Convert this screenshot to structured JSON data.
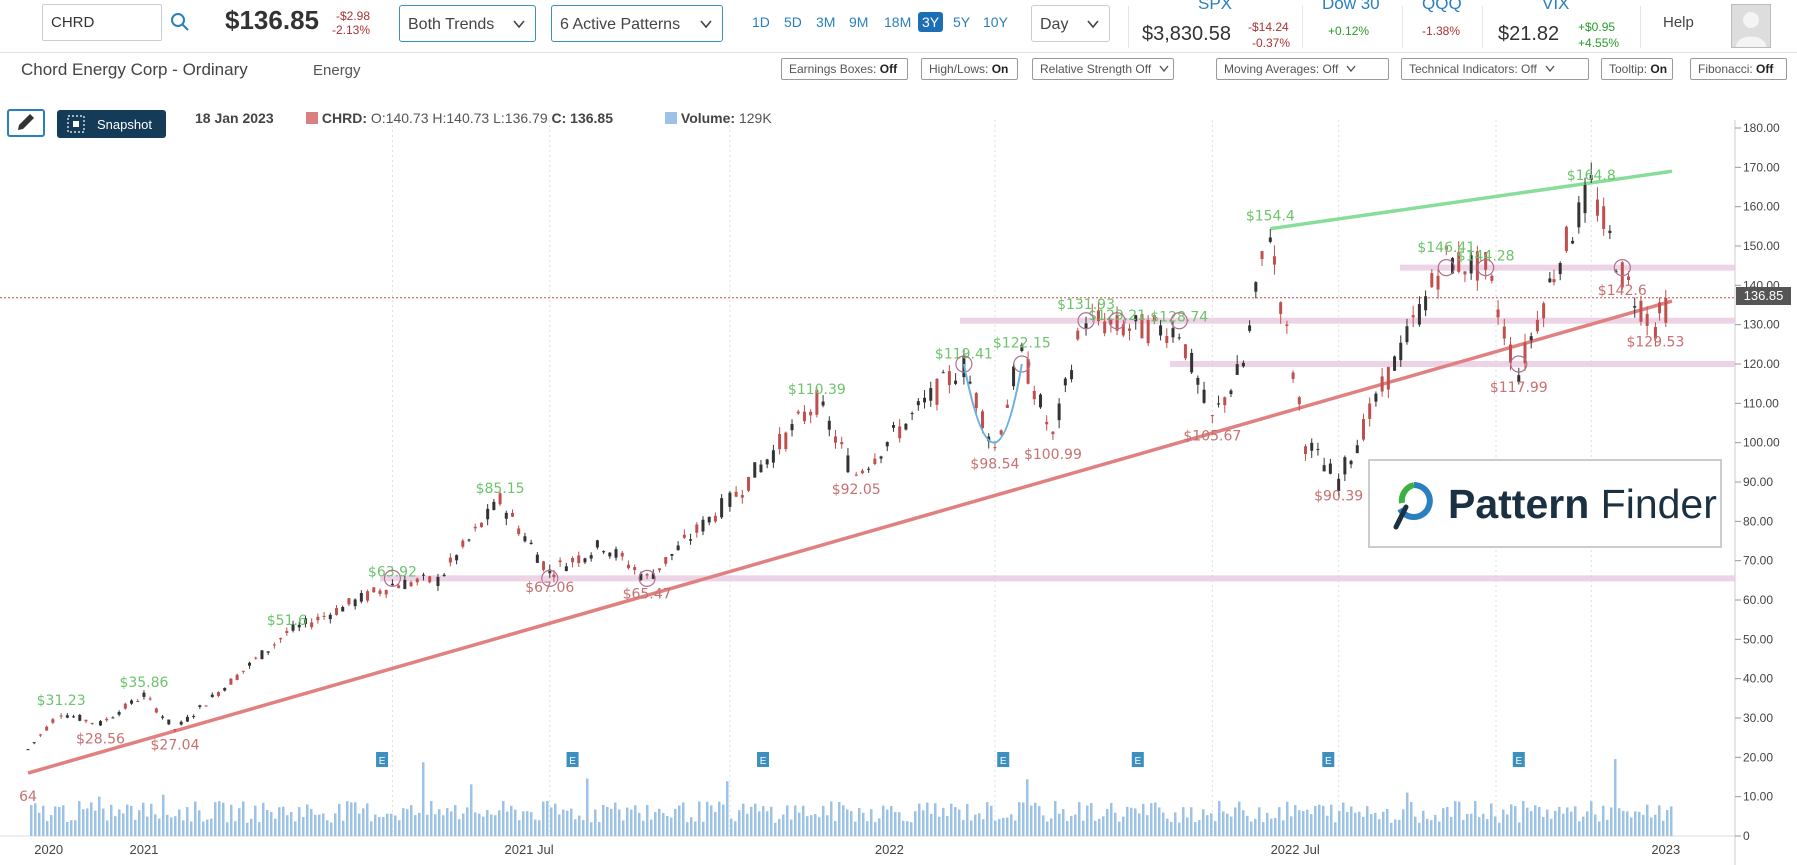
{
  "search": {
    "value": "CHRD"
  },
  "quote": {
    "price": "$136.85",
    "change": "-$2.98",
    "change_pct": "-2.13%"
  },
  "trend_select": {
    "value": "Both Trends"
  },
  "patterns_select": {
    "value": "6 Active Patterns"
  },
  "ranges": [
    "1D",
    "5D",
    "3M",
    "9M",
    "18M",
    "3Y",
    "5Y",
    "10Y"
  ],
  "active_range": "3Y",
  "interval_select": {
    "value": "Day"
  },
  "indices": [
    {
      "name": "SPX",
      "value": "$3,830.58",
      "change": "-$14.24",
      "change_pct": "-0.37%"
    },
    {
      "name": "Dow 30",
      "value": "",
      "change": "",
      "change_pct": "+0.12%"
    },
    {
      "name": "QQQ",
      "value": "",
      "change": "",
      "change_pct": "-1.38%"
    },
    {
      "name": "VIX",
      "value": "$21.82",
      "change": "+$0.95",
      "change_pct": "+4.55%"
    }
  ],
  "help_label": "Help",
  "company": {
    "name": "Chord Energy Corp - Ordinary",
    "sector": "Energy"
  },
  "toolbar": [
    {
      "label": "Earnings Boxes:",
      "value": "Off",
      "dropdown": false
    },
    {
      "label": "High/Lows:",
      "value": "On",
      "dropdown": false
    },
    {
      "label": "Relative Strength Off",
      "value": "",
      "dropdown": true
    },
    {
      "label": "Moving Averages: Off",
      "value": "",
      "dropdown": true
    },
    {
      "label": "Technical Indicators: Off",
      "value": "",
      "dropdown": true
    },
    {
      "label": "Tooltip:",
      "value": "On",
      "dropdown": false
    },
    {
      "label": "Fibonacci:",
      "value": "Off",
      "dropdown": false
    }
  ],
  "snapshot_label": "Snapshot",
  "ohlc": {
    "date": "18 Jan 2023",
    "symbol": "CHRD:",
    "o": "O:140.73",
    "h": "H:140.73",
    "l": "L:136.79",
    "c_label": "C:",
    "c": "136.85",
    "vol_label": "Volume:",
    "vol": "129K"
  },
  "logo": {
    "word1": "Pattern",
    "word2": "Finder"
  },
  "colors": {
    "up": "#333333",
    "down": "#c0504d",
    "support": "#e08080",
    "resistance": "#88dd99",
    "zone": "#e8c8e0",
    "accent": "#2a7fbf"
  },
  "chart_data": {
    "type": "candlestick",
    "y_ticks": [
      "180.00",
      "170.00",
      "160.00",
      "150.00",
      "140.00",
      "130.00",
      "120.00",
      "110.00",
      "100.00",
      "90.00",
      "80.00",
      "70.00",
      "60.00",
      "50.00",
      "40.00",
      "30.00",
      "20.00",
      "10.00",
      "0"
    ],
    "ylim": [
      0,
      180
    ],
    "x_labels": [
      "2020",
      "2021",
      "2021 Jul",
      "2022",
      "2022 Jul",
      "2023"
    ],
    "last_price": "136.85",
    "price_path": [
      {
        "date": "2020-11-15",
        "close": 22
      },
      {
        "date": "2020-12-01",
        "close": 31.23
      },
      {
        "date": "2020-12-20",
        "close": 28.56
      },
      {
        "date": "2021-01-10",
        "close": 35.86
      },
      {
        "date": "2021-01-25",
        "close": 27.04
      },
      {
        "date": "2021-03-20",
        "close": 51.6
      },
      {
        "date": "2021-05-10",
        "close": 63.92
      },
      {
        "date": "2021-06-01",
        "close": 65
      },
      {
        "date": "2021-07-01",
        "close": 85.15
      },
      {
        "date": "2021-07-25",
        "close": 67.06
      },
      {
        "date": "2021-08-20",
        "close": 74
      },
      {
        "date": "2021-09-10",
        "close": 65.47
      },
      {
        "date": "2021-10-20",
        "close": 85
      },
      {
        "date": "2021-12-01",
        "close": 110.39
      },
      {
        "date": "2021-12-20",
        "close": 92.05
      },
      {
        "date": "2022-02-10",
        "close": 119.41
      },
      {
        "date": "2022-02-25",
        "close": 98.54
      },
      {
        "date": "2022-03-10",
        "close": 122.15
      },
      {
        "date": "2022-03-25",
        "close": 100.99
      },
      {
        "date": "2022-04-10",
        "close": 131.93
      },
      {
        "date": "2022-04-25",
        "close": 129.21
      },
      {
        "date": "2022-05-25",
        "close": 128.74
      },
      {
        "date": "2022-06-10",
        "close": 105.67
      },
      {
        "date": "2022-06-25",
        "close": 120
      },
      {
        "date": "2022-07-08",
        "close": 154.4
      },
      {
        "date": "2022-07-25",
        "close": 100
      },
      {
        "date": "2022-08-10",
        "close": 90.39
      },
      {
        "date": "2022-09-15",
        "close": 130
      },
      {
        "date": "2022-10-01",
        "close": 146.41
      },
      {
        "date": "2022-10-20",
        "close": 144.28
      },
      {
        "date": "2022-11-05",
        "close": 117.99
      },
      {
        "date": "2022-11-20",
        "close": 140
      },
      {
        "date": "2022-12-10",
        "close": 164.8
      },
      {
        "date": "2022-12-25",
        "close": 142.6
      },
      {
        "date": "2023-01-10",
        "close": 129.53
      },
      {
        "date": "2023-01-18",
        "close": 136.85
      }
    ],
    "highs": [
      "$31.23",
      "$35.86",
      "$51.6",
      "$63.92",
      "$85.15",
      "$110.39",
      "$119.41",
      "$122.15",
      "$131.93",
      "$129.21",
      "$128.74",
      "$154.4",
      "$146.41",
      "$144.28",
      "$164.8"
    ],
    "lows": [
      "64",
      "$28.56",
      "$27.04",
      "$67.06",
      "$65.47",
      "$92.05",
      "$98.54",
      "$100.99",
      "$105.67",
      "$90.39",
      "$117.99",
      "$142.6",
      "$129.53"
    ],
    "support_trendline": [
      {
        "date": "2020-11-15",
        "value": 16
      },
      {
        "date": "2023-01-18",
        "value": 136
      }
    ],
    "resistance_trendline": [
      {
        "date": "2022-07-08",
        "value": 154.4
      },
      {
        "date": "2023-01-18",
        "value": 169
      }
    ],
    "zones": [
      65.5,
      120,
      131,
      144.5
    ],
    "earnings_markers": [
      "E",
      "E",
      "E",
      "E",
      "E",
      "E",
      "E"
    ],
    "volume_ylim": [
      0,
      35
    ]
  }
}
